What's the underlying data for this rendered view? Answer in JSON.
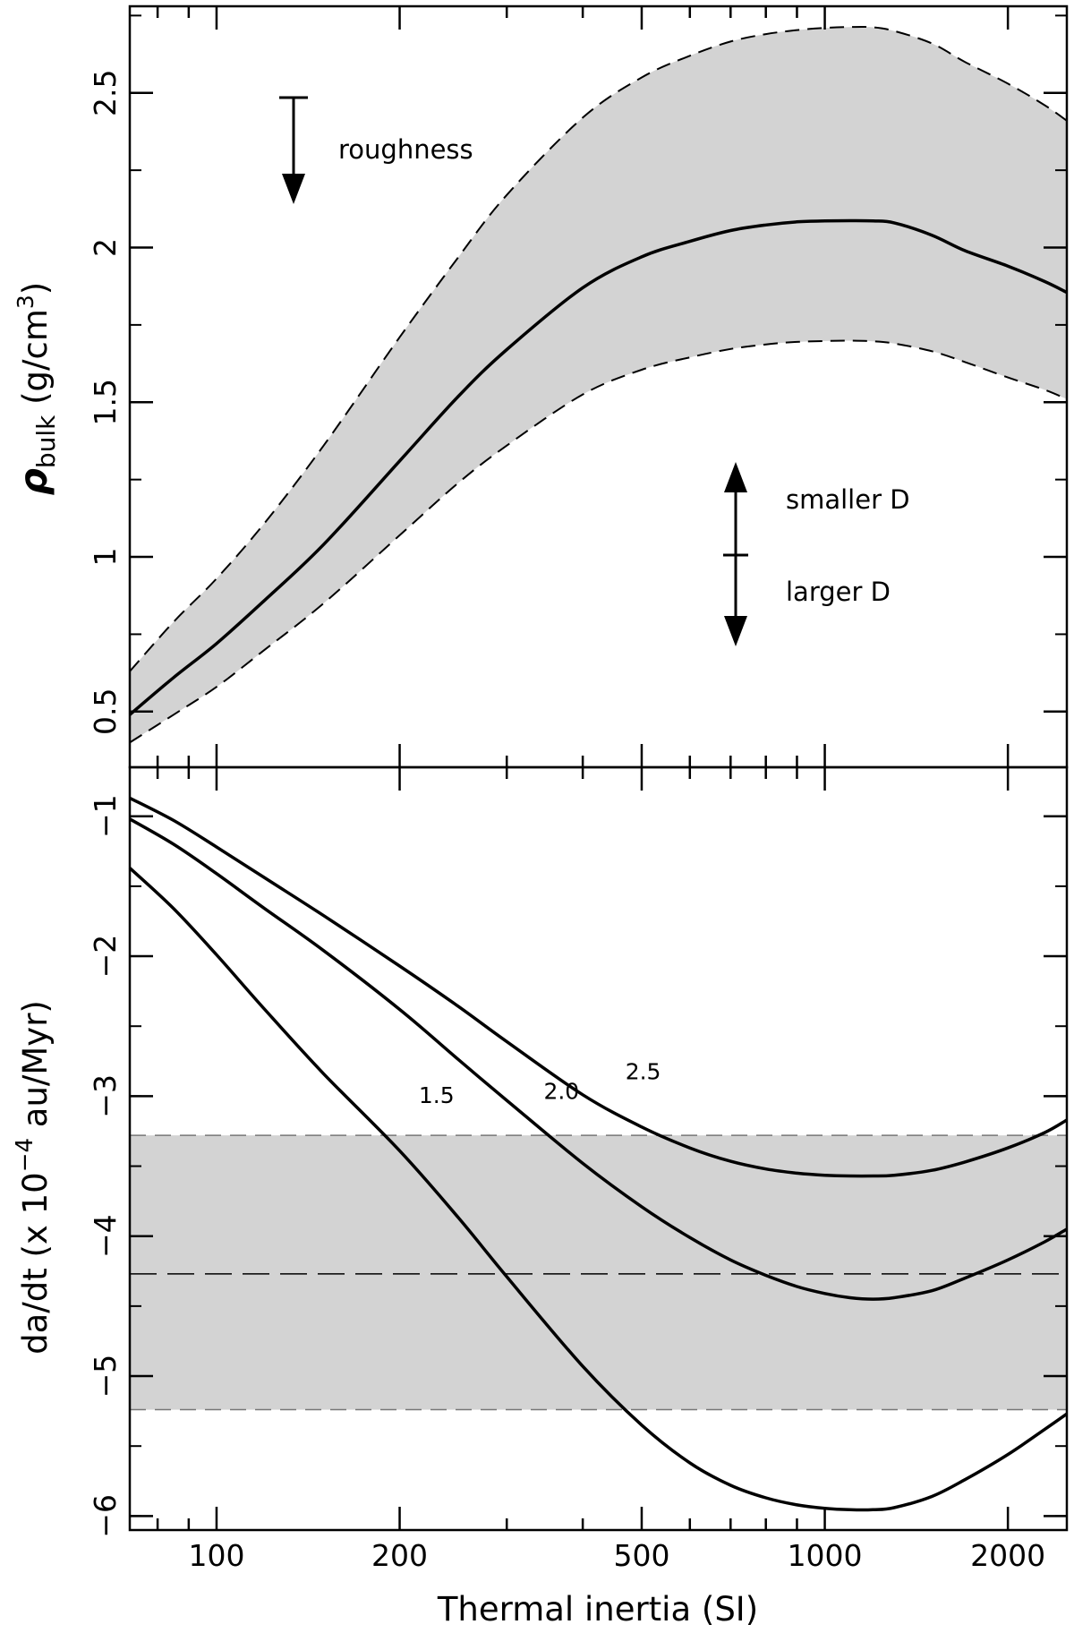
{
  "chart_data": [
    {
      "type": "area",
      "panel": "top",
      "xscale": "log",
      "xlim": [
        72,
        2500
      ],
      "ylim": [
        0.32,
        2.78
      ],
      "ylabel_main": "ρ",
      "ylabel_sub": "bulk",
      "ylabel_units": "(g/cm",
      "ylabel_units_sup": "3",
      "ylabel_units_close": ")",
      "y_ticks": [
        {
          "v": 0.5,
          "label": "0.5"
        },
        {
          "v": 1.0,
          "label": "1"
        },
        {
          "v": 1.5,
          "label": "1.5"
        },
        {
          "v": 2.0,
          "label": "2"
        },
        {
          "v": 2.5,
          "label": "2.5"
        }
      ],
      "x": [
        72,
        85,
        100,
        120,
        150,
        200,
        250,
        300,
        400,
        500,
        600,
        700,
        800,
        900,
        1000,
        1100,
        1200,
        1300,
        1500,
        1700,
        2000,
        2300,
        2500
      ],
      "series": [
        {
          "name": "upper",
          "style": "dashed",
          "values": [
            0.63,
            0.79,
            0.93,
            1.11,
            1.36,
            1.71,
            1.97,
            2.17,
            2.42,
            2.55,
            2.62,
            2.666,
            2.69,
            2.703,
            2.71,
            2.713,
            2.712,
            2.7,
            2.66,
            2.6,
            2.53,
            2.46,
            2.41
          ]
        },
        {
          "name": "nominal",
          "style": "solid",
          "values": [
            0.49,
            0.61,
            0.72,
            0.86,
            1.04,
            1.31,
            1.52,
            1.67,
            1.87,
            1.97,
            2.02,
            2.055,
            2.073,
            2.083,
            2.086,
            2.087,
            2.086,
            2.08,
            2.04,
            1.99,
            1.94,
            1.89,
            1.855
          ]
        },
        {
          "name": "lower",
          "style": "dashed",
          "values": [
            0.4,
            0.49,
            0.58,
            0.7,
            0.85,
            1.07,
            1.24,
            1.36,
            1.525,
            1.605,
            1.645,
            1.672,
            1.687,
            1.695,
            1.698,
            1.699,
            1.697,
            1.69,
            1.665,
            1.63,
            1.58,
            1.54,
            1.51
          ]
        }
      ],
      "annotations": [
        {
          "text": "roughness",
          "arrow": "down",
          "x": 130,
          "y_from": 2.5,
          "y_to": 2.16
        },
        {
          "text": "smaller D",
          "arrow": "up",
          "x": 700,
          "y_from": 1.0,
          "y_to": 1.3
        },
        {
          "text": "larger D",
          "arrow": "down",
          "x": 700,
          "y_from": 1.0,
          "y_to": 0.7
        }
      ]
    },
    {
      "type": "line",
      "panel": "bottom",
      "xscale": "log",
      "xlim": [
        72,
        2500
      ],
      "ylim": [
        -6.1,
        -0.65
      ],
      "xlabel": "Thermal inertia (SI)",
      "ylabel_pre": "da/dt (x 10",
      "ylabel_sup": "−4",
      "ylabel_post": " au/Myr)",
      "x_ticks": [
        {
          "v": 100,
          "label": "100"
        },
        {
          "v": 200,
          "label": "200"
        },
        {
          "v": 500,
          "label": "500"
        },
        {
          "v": 1000,
          "label": "1000"
        },
        {
          "v": 2000,
          "label": "2000"
        }
      ],
      "y_ticks": [
        {
          "v": -1,
          "label": "−1"
        },
        {
          "v": -2,
          "label": "−2"
        },
        {
          "v": -3,
          "label": "−3"
        },
        {
          "v": -4,
          "label": "−4"
        },
        {
          "v": -5,
          "label": "−5"
        },
        {
          "v": -6,
          "label": "−6"
        }
      ],
      "band": {
        "low": -5.24,
        "mid": -4.27,
        "high": -3.28
      },
      "x": [
        72,
        85,
        100,
        120,
        150,
        200,
        250,
        300,
        400,
        500,
        600,
        700,
        800,
        900,
        1000,
        1100,
        1200,
        1300,
        1500,
        1700,
        2000,
        2300,
        2500
      ],
      "series": [
        {
          "name": "2.5",
          "label_at": [
            470,
            -2.88
          ],
          "values": [
            -0.87,
            -1.03,
            -1.22,
            -1.44,
            -1.71,
            -2.07,
            -2.36,
            -2.61,
            -2.99,
            -3.22,
            -3.37,
            -3.465,
            -3.52,
            -3.55,
            -3.565,
            -3.57,
            -3.57,
            -3.565,
            -3.53,
            -3.47,
            -3.37,
            -3.26,
            -3.17
          ]
        },
        {
          "name": "2.0",
          "label_at": [
            345,
            -3.02
          ],
          "values": [
            -1.02,
            -1.2,
            -1.41,
            -1.66,
            -1.96,
            -2.38,
            -2.74,
            -3.03,
            -3.48,
            -3.79,
            -4.01,
            -4.17,
            -4.28,
            -4.36,
            -4.41,
            -4.44,
            -4.45,
            -4.44,
            -4.39,
            -4.3,
            -4.17,
            -4.04,
            -3.95
          ]
        },
        {
          "name": "1.5",
          "label_at": [
            215,
            -3.05
          ],
          "values": [
            -1.37,
            -1.66,
            -1.99,
            -2.38,
            -2.84,
            -3.39,
            -3.87,
            -4.29,
            -4.93,
            -5.35,
            -5.62,
            -5.78,
            -5.87,
            -5.92,
            -5.945,
            -5.955,
            -5.955,
            -5.94,
            -5.86,
            -5.74,
            -5.56,
            -5.38,
            -5.27
          ]
        }
      ]
    }
  ]
}
